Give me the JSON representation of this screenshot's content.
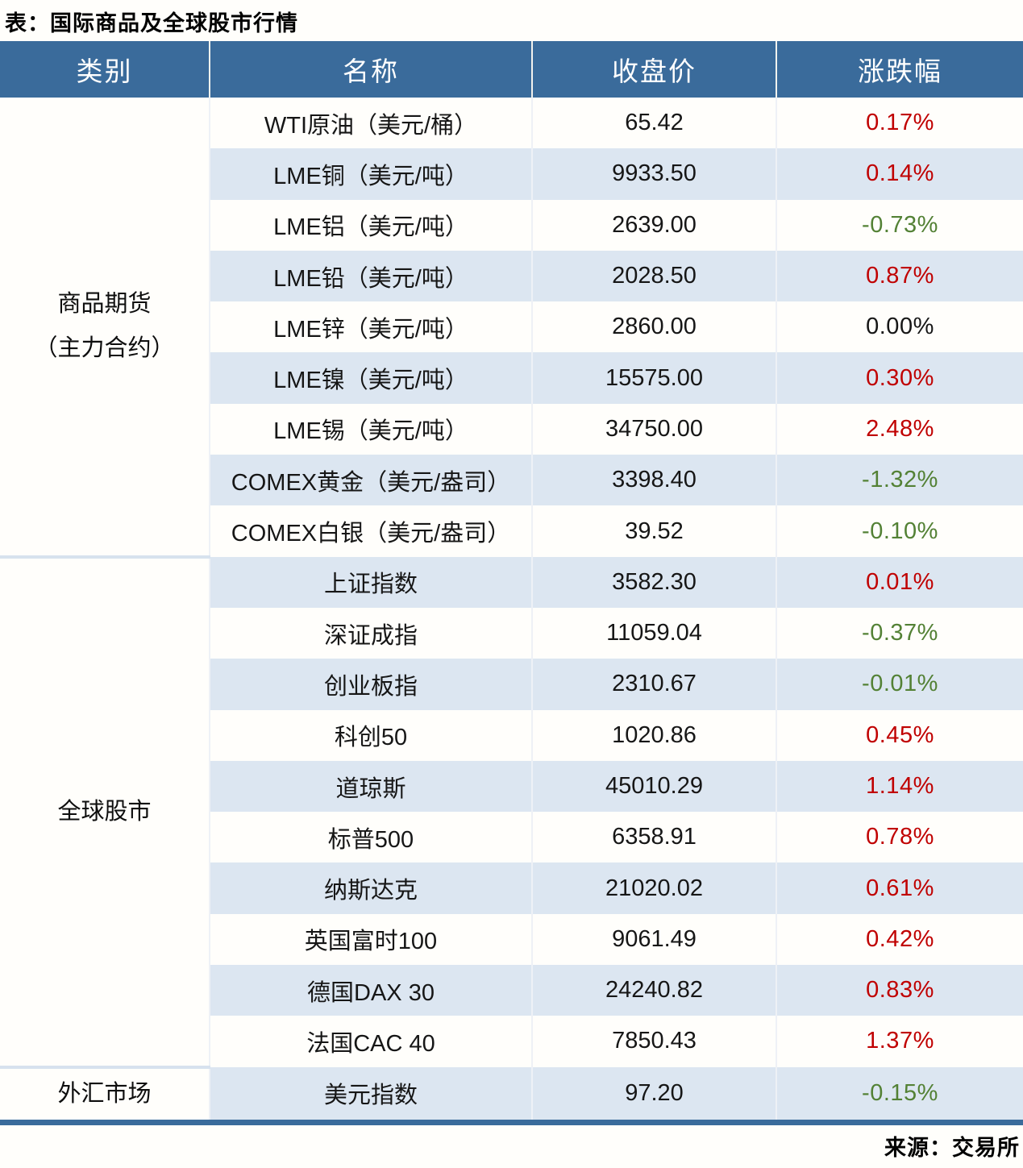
{
  "title": "表：国际商品及全球股市行情",
  "source": "来源：交易所",
  "colors": {
    "up": "#c00000",
    "down": "#538135",
    "flat": "#161616",
    "header_bg": "#3a6b9b",
    "stripe_bg": "#dce6f1",
    "section_divider": "#d7e2ee",
    "bottom_border": "#3a6b9b"
  },
  "table": {
    "headers": [
      "类别",
      "名称",
      "收盘价",
      "涨跌幅"
    ],
    "sections": [
      {
        "category": "商品期货\n（主力合约）",
        "rows": [
          {
            "name": "WTI原油（美元/桶）",
            "close": "65.42",
            "change": "0.17%",
            "dir": "up"
          },
          {
            "name": "LME铜（美元/吨）",
            "close": "9933.50",
            "change": "0.14%",
            "dir": "up"
          },
          {
            "name": "LME铝（美元/吨）",
            "close": "2639.00",
            "change": "-0.73%",
            "dir": "down"
          },
          {
            "name": "LME铅（美元/吨）",
            "close": "2028.50",
            "change": "0.87%",
            "dir": "up"
          },
          {
            "name": "LME锌（美元/吨）",
            "close": "2860.00",
            "change": "0.00%",
            "dir": "flat"
          },
          {
            "name": "LME镍（美元/吨）",
            "close": "15575.00",
            "change": "0.30%",
            "dir": "up"
          },
          {
            "name": "LME锡（美元/吨）",
            "close": "34750.00",
            "change": "2.48%",
            "dir": "up"
          },
          {
            "name": "COMEX黄金（美元/盎司）",
            "close": "3398.40",
            "change": "-1.32%",
            "dir": "down"
          },
          {
            "name": "COMEX白银（美元/盎司）",
            "close": "39.52",
            "change": "-0.10%",
            "dir": "down"
          }
        ]
      },
      {
        "category": "全球股市",
        "rows": [
          {
            "name": "上证指数",
            "close": "3582.30",
            "change": "0.01%",
            "dir": "up"
          },
          {
            "name": "深证成指",
            "close": "11059.04",
            "change": "-0.37%",
            "dir": "down"
          },
          {
            "name": "创业板指",
            "close": "2310.67",
            "change": "-0.01%",
            "dir": "down"
          },
          {
            "name": "科创50",
            "close": "1020.86",
            "change": "0.45%",
            "dir": "up"
          },
          {
            "name": "道琼斯",
            "close": "45010.29",
            "change": "1.14%",
            "dir": "up"
          },
          {
            "name": "标普500",
            "close": "6358.91",
            "change": "0.78%",
            "dir": "up"
          },
          {
            "name": "纳斯达克",
            "close": "21020.02",
            "change": "0.61%",
            "dir": "up"
          },
          {
            "name": "英国富时100",
            "close": "9061.49",
            "change": "0.42%",
            "dir": "up"
          },
          {
            "name": "德国DAX 30",
            "close": "24240.82",
            "change": "0.83%",
            "dir": "up"
          },
          {
            "name": "法国CAC 40",
            "close": "7850.43",
            "change": "1.37%",
            "dir": "up"
          }
        ]
      },
      {
        "category": "外汇市场",
        "rows": [
          {
            "name": "美元指数",
            "close": "97.20",
            "change": "-0.15%",
            "dir": "down"
          }
        ]
      }
    ]
  }
}
